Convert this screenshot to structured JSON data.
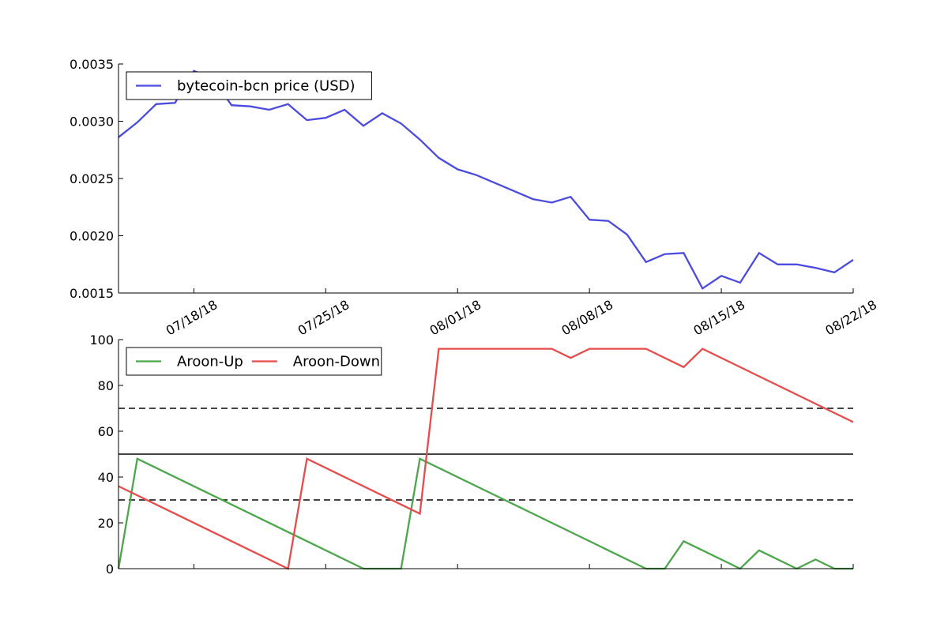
{
  "chart_data": [
    {
      "type": "line",
      "title": "",
      "xlabel": "",
      "ylabel": "",
      "x_tick_labels": [
        "07/18/18",
        "07/25/18",
        "08/01/18",
        "08/08/18",
        "08/15/18",
        "08/22/18"
      ],
      "y_tick_labels": [
        "0.0015",
        "0.0020",
        "0.0025",
        "0.0030",
        "0.0035"
      ],
      "ylim": [
        0.0015,
        0.0035
      ],
      "xlim": [
        "07/14/18",
        "08/22/18"
      ],
      "legend_position": "top-left",
      "grid": false,
      "series": [
        {
          "name": "bytecoin-bcn price (USD)",
          "color": "#4b4be0",
          "x": [
            "07/14/18",
            "07/15/18",
            "07/16/18",
            "07/17/18",
            "07/18/18",
            "07/19/18",
            "07/20/18",
            "07/21/18",
            "07/22/18",
            "07/23/18",
            "07/24/18",
            "07/25/18",
            "07/26/18",
            "07/27/18",
            "07/28/18",
            "07/29/18",
            "07/30/18",
            "07/31/18",
            "08/01/18",
            "08/02/18",
            "08/03/18",
            "08/04/18",
            "08/05/18",
            "08/06/18",
            "08/07/18",
            "08/08/18",
            "08/09/18",
            "08/10/18",
            "08/11/18",
            "08/12/18",
            "08/13/18",
            "08/14/18",
            "08/15/18",
            "08/16/18",
            "08/17/18",
            "08/18/18",
            "08/19/18",
            "08/20/18",
            "08/21/18",
            "08/22/18"
          ],
          "values": [
            0.00286,
            0.00299,
            0.00315,
            0.00316,
            0.00344,
            0.00337,
            0.00314,
            0.00313,
            0.0031,
            0.00315,
            0.00301,
            0.00303,
            0.0031,
            0.00296,
            0.00307,
            0.00298,
            0.00284,
            0.00268,
            0.00258,
            0.00253,
            0.00246,
            0.00239,
            0.00232,
            0.00229,
            0.00234,
            0.00214,
            0.00213,
            0.00201,
            0.00177,
            0.00184,
            0.00185,
            0.00154,
            0.00165,
            0.00159,
            0.00185,
            0.00175,
            0.00175,
            0.00172,
            0.00168,
            0.00179
          ]
        }
      ]
    },
    {
      "type": "line",
      "title": "",
      "xlabel": "",
      "ylabel": "",
      "y_tick_labels": [
        "0",
        "20",
        "40",
        "60",
        "80",
        "100"
      ],
      "ylim": [
        0,
        100
      ],
      "xlim": [
        "07/14/18",
        "08/22/18"
      ],
      "legend_position": "top-left",
      "grid": false,
      "reference_lines": [
        {
          "y": 70,
          "style": "dashed",
          "color": "#444444"
        },
        {
          "y": 50,
          "style": "solid",
          "color": "#444444"
        },
        {
          "y": 30,
          "style": "dashed",
          "color": "#444444"
        }
      ],
      "series": [
        {
          "name": "Aroon-Up",
          "color": "#4ca64c",
          "x": [
            "07/14/18",
            "07/15/18",
            "07/27/18",
            "07/28/18",
            "07/29/18",
            "07/30/18",
            "08/11/18",
            "08/12/18",
            "08/13/18",
            "08/16/18",
            "08/17/18",
            "08/19/18",
            "08/20/18",
            "08/21/18",
            "08/22/18"
          ],
          "values": [
            0,
            48,
            0,
            0,
            0,
            48,
            0,
            0,
            12,
            0,
            8,
            0,
            4,
            0,
            0
          ]
        },
        {
          "name": "Aroon-Down",
          "color": "#e64c4c",
          "x": [
            "07/14/18",
            "07/23/18",
            "07/24/18",
            "07/30/18",
            "07/31/18",
            "08/06/18",
            "08/07/18",
            "08/08/18",
            "08/11/18",
            "08/13/18",
            "08/14/18",
            "08/22/18"
          ],
          "values": [
            36,
            0,
            48,
            24,
            96,
            96,
            92,
            96,
            96,
            88,
            96,
            64
          ]
        }
      ]
    }
  ]
}
